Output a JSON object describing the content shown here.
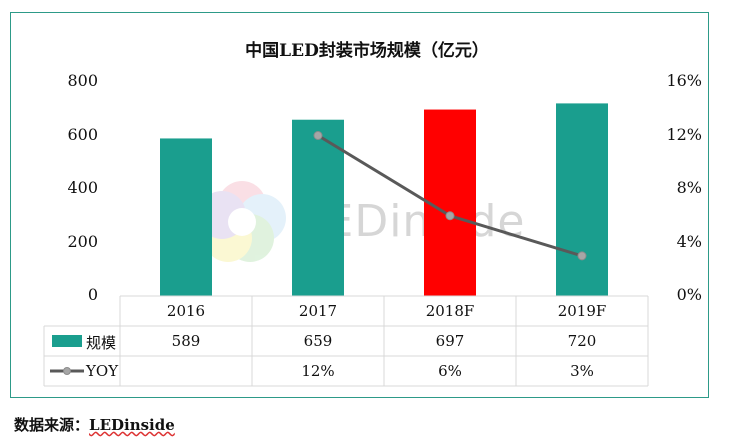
{
  "chart_data": {
    "type": "bar",
    "title": "中国LED封装市场规模（亿元）",
    "categories": [
      "2016",
      "2017",
      "2018F",
      "2019F"
    ],
    "series": [
      {
        "name": "规模",
        "kind": "bar",
        "axis": "left",
        "values": [
          589,
          659,
          697,
          720
        ],
        "labels": [
          "589",
          "659",
          "697",
          "720"
        ]
      },
      {
        "name": "YOY",
        "kind": "line",
        "axis": "right",
        "values": [
          null,
          12,
          6,
          3
        ],
        "labels": [
          "",
          "12%",
          "6%",
          "3%"
        ]
      }
    ],
    "left_axis": {
      "min": 0,
      "max": 800,
      "ticks": [
        "0",
        "200",
        "400",
        "600",
        "800"
      ]
    },
    "right_axis": {
      "min": 0,
      "max": 16,
      "ticks": [
        "0%",
        "4%",
        "8%",
        "12%",
        "16%"
      ]
    },
    "highlight_category": "2018F",
    "colors": {
      "bar": "#1a9e8e",
      "highlight": "#ff0000",
      "line": "#595959",
      "marker": "#a6a6a6",
      "frame": "#2d9a88"
    }
  },
  "watermark": "LEDinside",
  "source": {
    "label": "数据来源：",
    "name": "LEDinside"
  }
}
